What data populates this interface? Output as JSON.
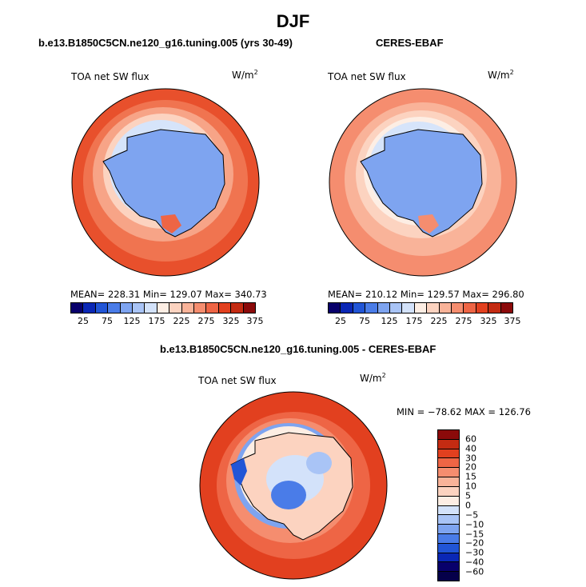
{
  "figure": {
    "season": "DJF",
    "left_panel": {
      "title": "b.e13.B1850C5CN.ne120_g16.tuning.005 (yrs 30-49)",
      "variable": "TOA net SW flux",
      "units_base": "W/m",
      "units_exp": "2",
      "stats": "MEAN= 228.31   Min= 129.07   Max= 340.73"
    },
    "right_panel": {
      "title": "CERES-EBAF",
      "variable": "TOA net SW flux",
      "units_base": "W/m",
      "units_exp": "2",
      "stats": "MEAN= 210.12   Min= 129.57   Max= 296.80"
    },
    "diff_panel": {
      "title": "b.e13.B1850C5CN.ne120_g16.tuning.005 - CERES-EBAF",
      "variable": "TOA net SW flux",
      "units_base": "W/m",
      "units_exp": "2",
      "stats": "MIN = −78.62  MAX = 126.76"
    }
  },
  "colorbar_abs": {
    "ticks": [
      "25",
      "75",
      "125",
      "175",
      "225",
      "275",
      "325",
      "375"
    ],
    "colors": [
      "#08006b",
      "#0a27b5",
      "#2155d6",
      "#4a7ce8",
      "#7ea4f0",
      "#a9c4f6",
      "#d3e2fa",
      "#fdeee4",
      "#fcd3c0",
      "#f9b399",
      "#f58d6f",
      "#ee6545",
      "#e2401f",
      "#c42b12",
      "#8b0a0a"
    ]
  },
  "colorbar_diff": {
    "ticks": [
      "60",
      "40",
      "30",
      "20",
      "15",
      "10",
      "5",
      "0",
      "−5",
      "−10",
      "−15",
      "−20",
      "−30",
      "−40",
      "−60"
    ],
    "colors": [
      "#8b0a0a",
      "#c42b12",
      "#e2401f",
      "#ee6545",
      "#f58d6f",
      "#f9b399",
      "#fcd3c0",
      "#fdeee4",
      "#d3e2fa",
      "#a9c4f6",
      "#7ea4f0",
      "#4a7ce8",
      "#2155d6",
      "#0a27b5",
      "#08006b",
      "#05004a"
    ]
  }
}
